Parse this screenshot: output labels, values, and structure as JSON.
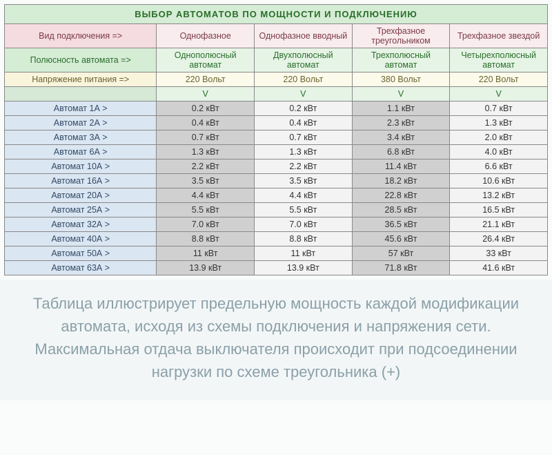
{
  "title": "ВЫБОР АВТОМАТОВ ПО МОЩНОСТИ И ПОДКЛЮЧЕНИЮ",
  "header": {
    "connection_label": "Вид подключения =>",
    "connection_values": [
      "Однофазное",
      "Однофазное вводный",
      "Трехфазное треугольником",
      "Трехфазное звездой"
    ],
    "pole_label": "Полюсность автомата =>",
    "pole_values": [
      "Однополюсный автомат",
      "Двухполюсный автомат",
      "Трехполюсный автомат",
      "Четырехполюсный автомат"
    ],
    "voltage_label": "Напряжение питания =>",
    "voltage_values": [
      "220 Вольт",
      "220 Вольт",
      "380 Вольт",
      "220 Вольт"
    ],
    "v_label": "",
    "v_values": [
      "V",
      "V",
      "V",
      "V"
    ]
  },
  "rows": [
    {
      "label": "Автомат 1А >",
      "c": [
        "0.2 кВт",
        "0.2 кВт",
        "1.1 кВт",
        "0.7 кВт"
      ]
    },
    {
      "label": "Автомат 2А >",
      "c": [
        "0.4 кВт",
        "0.4 кВт",
        "2.3 кВт",
        "1.3 кВт"
      ]
    },
    {
      "label": "Автомат 3А >",
      "c": [
        "0.7 кВт",
        "0.7 кВт",
        "3.4 кВт",
        "2.0 кВт"
      ]
    },
    {
      "label": "Автомат 6А >",
      "c": [
        "1.3 кВт",
        "1.3 кВт",
        "6.8 кВт",
        "4.0 кВт"
      ]
    },
    {
      "label": "Автомат 10А >",
      "c": [
        "2.2 кВт",
        "2.2 кВт",
        "11.4 кВт",
        "6.6 кВт"
      ]
    },
    {
      "label": "Автомат 16А >",
      "c": [
        "3.5 кВт",
        "3.5 кВт",
        "18.2 кВт",
        "10.6 кВт"
      ]
    },
    {
      "label": "Автомат 20А >",
      "c": [
        "4.4 кВт",
        "4.4 кВт",
        "22.8 кВт",
        "13.2 кВт"
      ]
    },
    {
      "label": "Автомат 25А >",
      "c": [
        "5.5 кВт",
        "5.5 кВт",
        "28.5 кВт",
        "16.5 кВт"
      ]
    },
    {
      "label": "Автомат 32А >",
      "c": [
        "7.0 кВт",
        "7.0 кВт",
        "36.5 кВт",
        "21.1 кВт"
      ]
    },
    {
      "label": "Автомат 40А >",
      "c": [
        "8.8 кВт",
        "8.8 кВт",
        "45.6 кВт",
        "26.4 кВт"
      ]
    },
    {
      "label": "Автомат 50А >",
      "c": [
        "11 кВт",
        "11 кВт",
        "57 кВт",
        "33 кВт"
      ]
    },
    {
      "label": "Автомат 63А >",
      "c": [
        "13.9 кВт",
        "13.9 кВт",
        "71.8 кВт",
        "41.6 кВт"
      ]
    }
  ],
  "caption": "Таблица иллюстрирует предельную мощность каждой модификации автомата, исходя из схемы подключения и напряжения сети. Максимальная отдача выключателя происходит при подсоединении нагрузки по схеме треугольника (+)",
  "styles": {
    "colors": {
      "title_bg": "#d5ecd5",
      "title_fg": "#2a6e2a",
      "conn_label_bg": "#f5dce0",
      "conn_val_bg": "#f9ecee",
      "pole_label_bg": "#d5ecd5",
      "pole_val_bg": "#e6f4e6",
      "volt_label_bg": "#f9f4dc",
      "volt_val_bg": "#fcfaea",
      "row_label_bg": "#dae6f2",
      "col_shaded": "#d0d0d0",
      "col_light": "#f3f3f3",
      "body_bg": "#fafcfc",
      "caption_bg": "#f3f6f7",
      "caption_fg": "#8aa0a8",
      "border": "#888888"
    },
    "font_sizes": {
      "table": 12.5,
      "title": 13,
      "caption": 22
    },
    "column_widths_pct": [
      28,
      18,
      18,
      18,
      18
    ]
  }
}
